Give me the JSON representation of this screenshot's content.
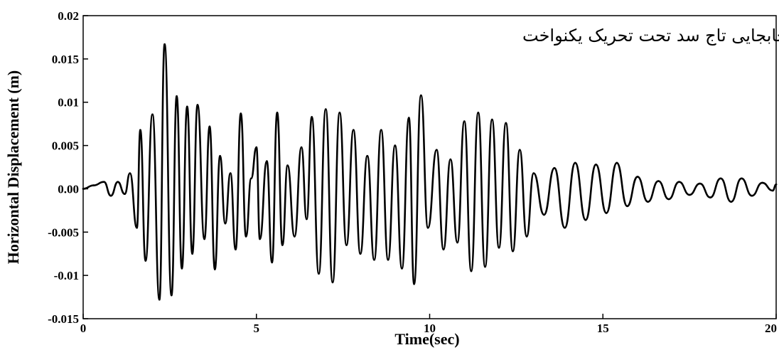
{
  "chart_data": {
    "type": "line",
    "title": "جابجایی تاج سد تحت تحریک یکنواخت",
    "xlabel": "Time(sec)",
    "ylabel": "Horizontal Displacement (m)",
    "xlim": [
      0,
      20
    ],
    "ylim": [
      -0.015,
      0.02
    ],
    "x_ticks": [
      0,
      5,
      10,
      15,
      20
    ],
    "x_tick_labels": [
      "0",
      "5",
      "10",
      "15",
      "20"
    ],
    "y_ticks": [
      0.02,
      0.015,
      0.01,
      0.005,
      0.0,
      -0.005,
      -0.01,
      -0.015
    ],
    "y_tick_labels": [
      "0.02",
      "0.015",
      "0.01",
      "0.005",
      "0.00",
      "-0.005",
      "-0.01",
      "-0.015"
    ],
    "grid": false,
    "series": [
      {
        "color": "#000000",
        "x": [
          0.0,
          0.3,
          0.6,
          0.8,
          1.0,
          1.2,
          1.35,
          1.55,
          1.65,
          1.8,
          2.0,
          2.2,
          2.35,
          2.55,
          2.7,
          2.85,
          3.0,
          3.15,
          3.3,
          3.5,
          3.65,
          3.8,
          3.95,
          4.1,
          4.25,
          4.4,
          4.55,
          4.7,
          4.85,
          5.0,
          5.1,
          5.3,
          5.45,
          5.6,
          5.75,
          5.9,
          6.1,
          6.3,
          6.45,
          6.6,
          6.8,
          7.0,
          7.2,
          7.4,
          7.6,
          7.8,
          8.0,
          8.2,
          8.4,
          8.6,
          8.8,
          9.0,
          9.2,
          9.4,
          9.55,
          9.75,
          9.95,
          10.2,
          10.4,
          10.6,
          10.8,
          11.0,
          11.2,
          11.4,
          11.6,
          11.8,
          12.0,
          12.2,
          12.4,
          12.6,
          12.8,
          13.0,
          13.3,
          13.6,
          13.9,
          14.2,
          14.5,
          14.8,
          15.1,
          15.4,
          15.7,
          16.0,
          16.3,
          16.6,
          16.9,
          17.2,
          17.5,
          17.8,
          18.1,
          18.4,
          18.7,
          19.0,
          19.3,
          19.6,
          19.9,
          20.0
        ],
        "y": [
          0.0,
          0.0004,
          0.0008,
          -0.0008,
          0.0008,
          -0.0006,
          0.0018,
          -0.0045,
          0.0068,
          -0.0083,
          0.0086,
          -0.0128,
          0.0167,
          -0.0123,
          0.0107,
          -0.0092,
          0.0095,
          -0.0075,
          0.0097,
          -0.0058,
          0.0072,
          -0.0093,
          0.0038,
          -0.004,
          0.0018,
          -0.007,
          0.0087,
          -0.0055,
          0.0012,
          0.0048,
          -0.0058,
          0.0032,
          -0.0085,
          0.0088,
          -0.0065,
          0.0027,
          -0.0055,
          0.0048,
          -0.0035,
          0.0083,
          -0.0098,
          0.0092,
          -0.0108,
          0.0088,
          -0.0065,
          0.0068,
          -0.0075,
          0.0038,
          -0.0082,
          0.0068,
          -0.0082,
          0.005,
          -0.0092,
          0.0082,
          -0.011,
          0.0108,
          -0.0045,
          0.0045,
          -0.007,
          0.0034,
          -0.0062,
          0.0078,
          -0.0095,
          0.0088,
          -0.009,
          0.008,
          -0.0068,
          0.0076,
          -0.0072,
          0.0045,
          -0.0055,
          0.0018,
          -0.003,
          0.0024,
          -0.0045,
          0.003,
          -0.0036,
          0.0028,
          -0.0028,
          0.003,
          -0.002,
          0.0014,
          -0.0015,
          0.0009,
          -0.0012,
          0.0008,
          -0.0007,
          0.0006,
          -0.001,
          0.0012,
          -0.0015,
          0.0012,
          -0.0008,
          0.0007,
          -0.0002,
          0.0005
        ]
      }
    ]
  }
}
